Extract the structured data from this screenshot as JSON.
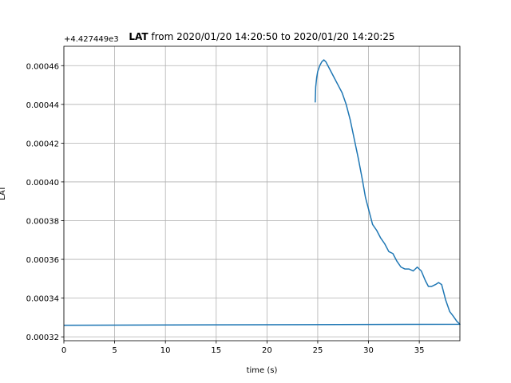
{
  "chart_data": {
    "type": "line",
    "title_bold": "LAT",
    "title_rest": " from 2020/01/20 14:20:50 to 2020/01/20 14:20:25",
    "xlabel": "time (s)",
    "ylabel": "LAT",
    "offset_text": "+4.427449e3",
    "xlim": [
      0,
      39
    ],
    "ylim": [
      0.000318,
      0.00047
    ],
    "xticks": [
      0,
      5,
      10,
      15,
      20,
      25,
      30,
      35
    ],
    "yticks": [
      0.00032,
      0.00034,
      0.00036,
      0.00038,
      0.0004,
      0.00042,
      0.00044,
      0.00046
    ],
    "ytick_labels": [
      "0.00032",
      "0.00034",
      "0.00036",
      "0.00038",
      "0.00040",
      "0.00042",
      "0.00044",
      "0.00046"
    ],
    "grid": true,
    "line_color": "#1f77b4",
    "series": [
      {
        "x": [
          0,
          39.0,
          38.7,
          38.3,
          38.0,
          37.6,
          37.2,
          36.9,
          36.6,
          36.2,
          35.9,
          35.6,
          35.2,
          34.8,
          34.4,
          34.0,
          33.6,
          33.2,
          32.8,
          32.4,
          32.0,
          31.6,
          31.2,
          30.8,
          30.4,
          30.0,
          29.7,
          29.4,
          29.0,
          28.6,
          28.2,
          27.8,
          27.4,
          27.0,
          26.6,
          26.2,
          25.8,
          25.6,
          25.4,
          25.2,
          25.0,
          24.9,
          24.8,
          24.75
        ],
        "y": [
          0.000326,
          0.0003265,
          0.000328,
          0.000331,
          0.000333,
          0.000339,
          0.000347,
          0.000348,
          0.000347,
          0.000346,
          0.000346,
          0.000349,
          0.000354,
          0.000356,
          0.000354,
          0.000355,
          0.000355,
          0.000356,
          0.000359,
          0.000363,
          0.000364,
          0.000368,
          0.000371,
          0.000375,
          0.000378,
          0.000386,
          0.000392,
          0.000401,
          0.000412,
          0.000422,
          0.000432,
          0.00044,
          0.000446,
          0.00045,
          0.000454,
          0.000458,
          0.000462,
          0.000463,
          0.000462,
          0.00046,
          0.000457,
          0.000454,
          0.000449,
          0.000441
        ]
      }
    ]
  }
}
